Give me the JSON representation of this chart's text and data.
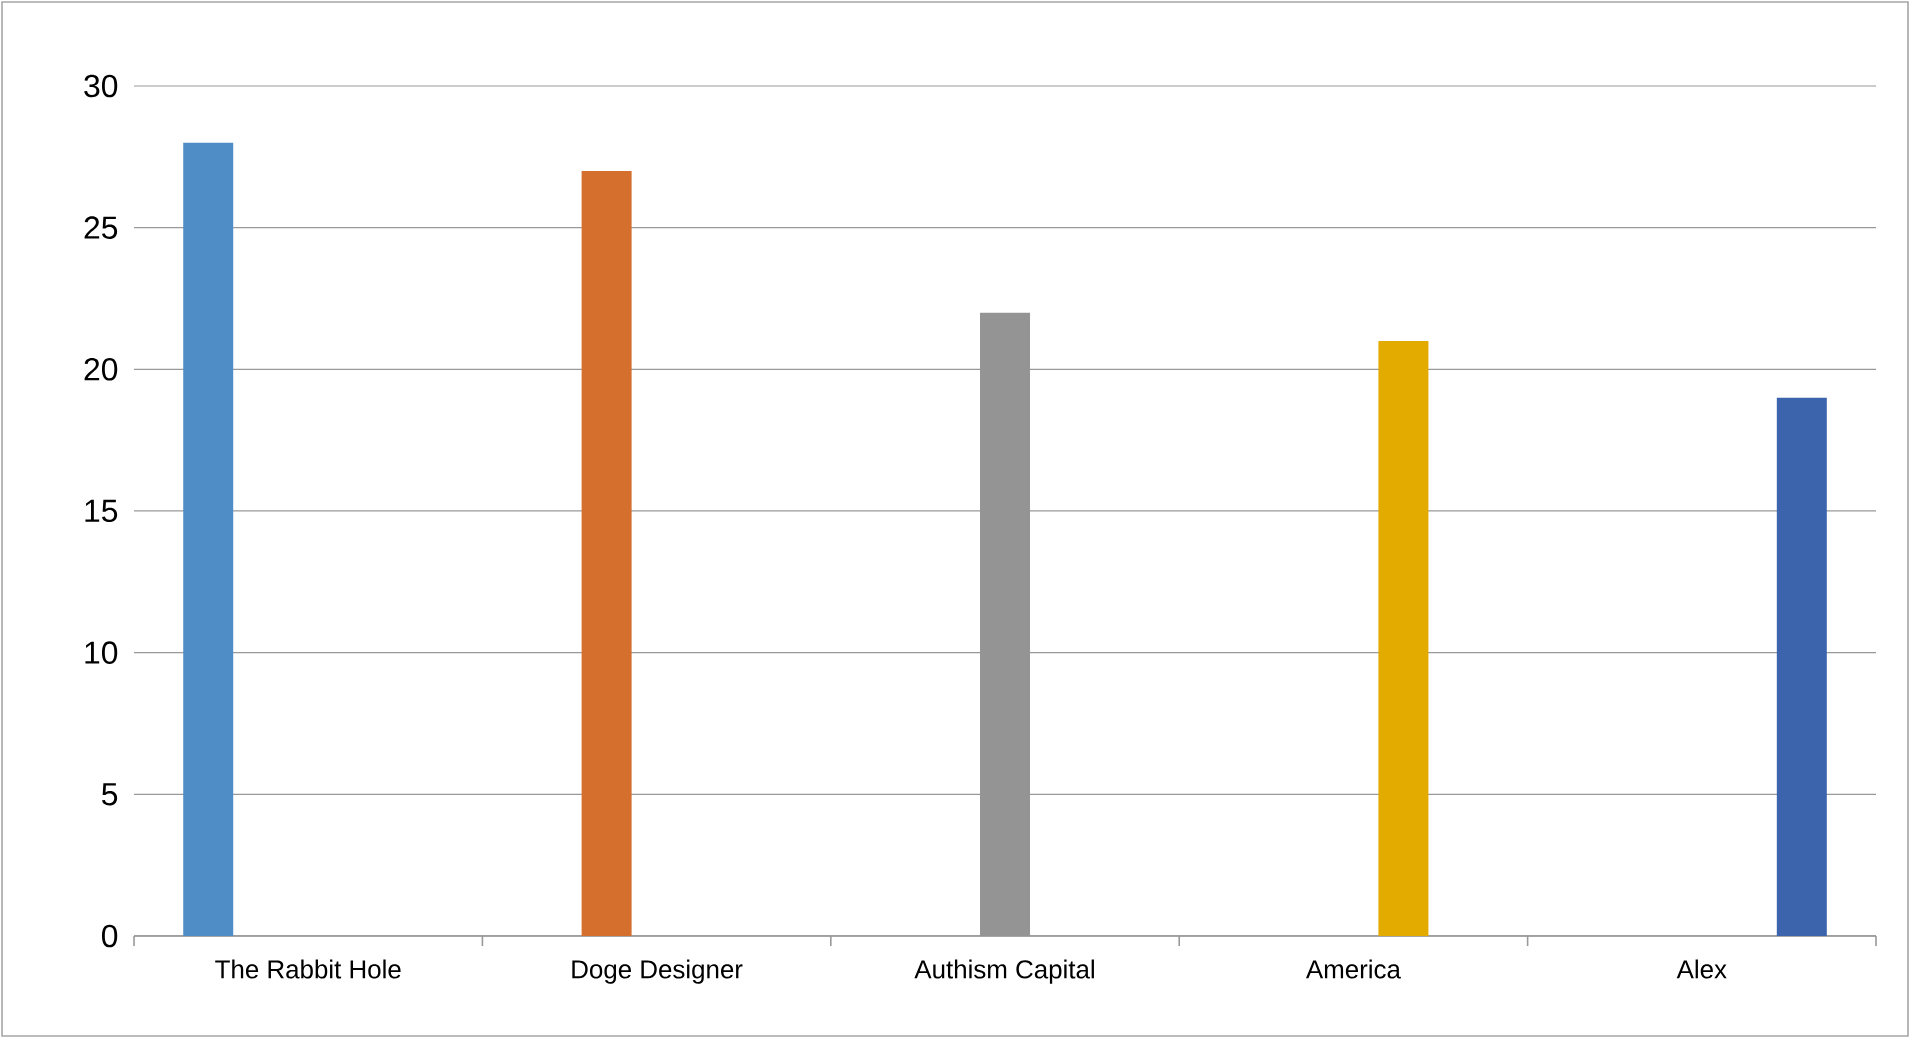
{
  "chart_data": {
    "type": "bar",
    "categories": [
      "The Rabbit Hole",
      "Doge Designer",
      "Authism Capital",
      "America",
      "Alex"
    ],
    "series": [
      {
        "color": "#4f8dc6",
        "values": [
          28,
          null,
          null,
          null,
          null
        ]
      },
      {
        "color": "#d46f2e",
        "values": [
          null,
          27,
          null,
          null,
          null
        ]
      },
      {
        "color": "#949494",
        "values": [
          null,
          null,
          22,
          null,
          null
        ]
      },
      {
        "color": "#e3aa00",
        "values": [
          null,
          null,
          null,
          21,
          null
        ]
      },
      {
        "color": "#3b64ad",
        "values": [
          null,
          null,
          null,
          null,
          19
        ]
      }
    ],
    "ylim": [
      0,
      30
    ],
    "yticks": [
      0,
      5,
      10,
      15,
      20,
      25,
      30
    ],
    "grid": "y"
  }
}
